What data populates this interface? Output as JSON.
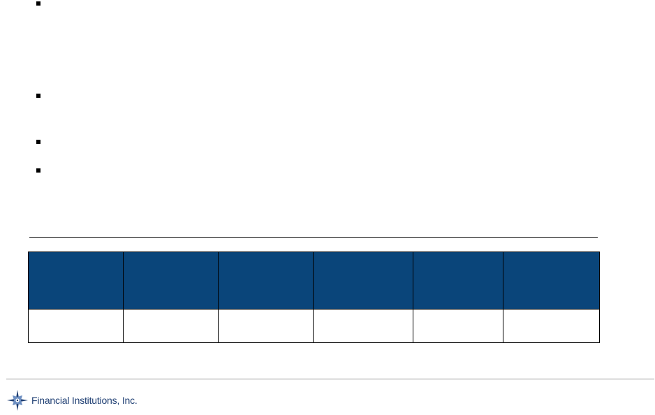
{
  "bullets": [
    {
      "text": ""
    },
    {
      "text": ""
    },
    {
      "text": ""
    },
    {
      "text": ""
    }
  ],
  "table": {
    "header_cells": [
      "",
      "",
      "",
      "",
      "",
      ""
    ],
    "row_cells": [
      "",
      "",
      "",
      "",
      "",
      ""
    ]
  },
  "colors": {
    "header_fill": "#0a457a",
    "logo_blue": "#1f3f73"
  },
  "footer": {
    "logo_icon": "compass-star-icon",
    "company_name": "Financial Institutions, Inc."
  }
}
